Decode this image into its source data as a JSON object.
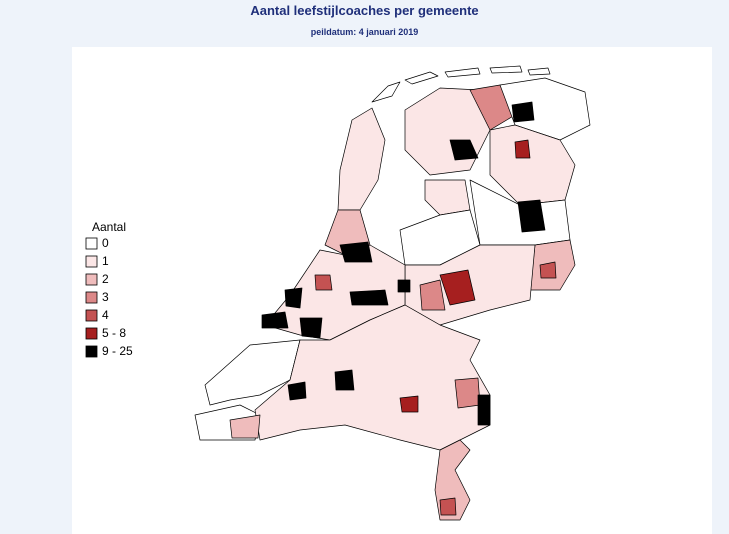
{
  "title": "Aantal leefstijlcoaches per gemeente",
  "subtitle": "peildatum: 4 januari 2019",
  "legend": {
    "title": "Aantal",
    "items": [
      {
        "label": "0",
        "color": "#ffffff"
      },
      {
        "label": "1",
        "color": "#fbe6e6"
      },
      {
        "label": "2",
        "color": "#efbcbc"
      },
      {
        "label": "3",
        "color": "#dc8888"
      },
      {
        "label": "4",
        "color": "#c45252"
      },
      {
        "label": "5 - 8",
        "color": "#a61f1f"
      },
      {
        "label": "9 - 25",
        "color": "#000000"
      }
    ]
  }
}
